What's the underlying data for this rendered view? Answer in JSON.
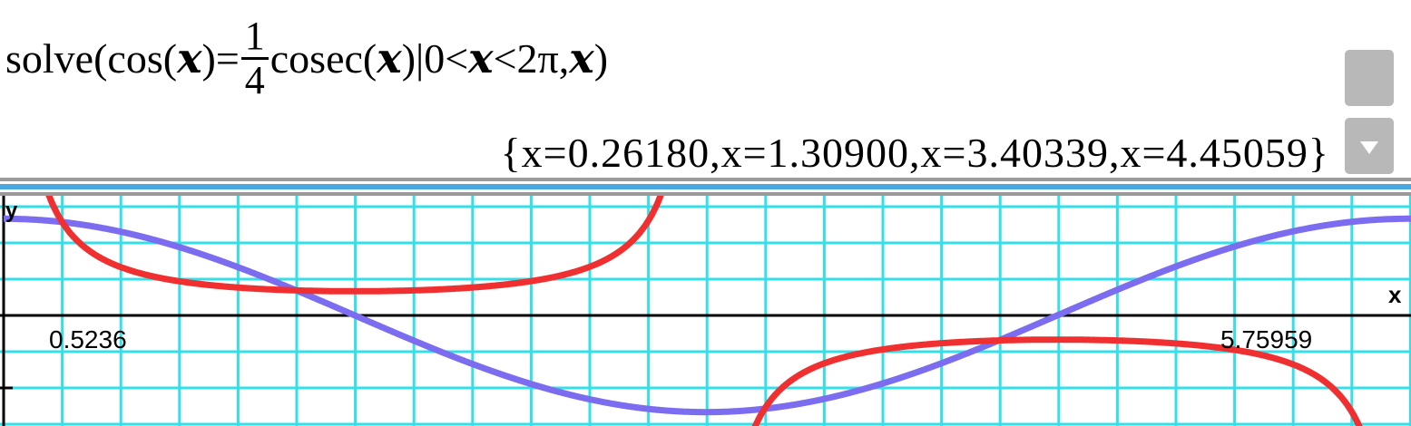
{
  "input": {
    "prefix": "solve(cos(",
    "var": "𝒙",
    "eq": ")=",
    "frac_num": "1",
    "frac_den": "4",
    "mid": "cosec(",
    "cond": ")|0<",
    "cond2": "<2π,",
    "end": ")"
  },
  "output": {
    "text": "{x=0.26180,x=1.30900,x=3.40339,x=4.45059}"
  },
  "graph": {
    "y_axis_label": "y",
    "x_axis_label": "x",
    "tick_label_left": "0.5236",
    "tick_label_right": "5.75959",
    "grid_color": "#33e0ea",
    "curve1_color": "#7b6cf0",
    "curve2_color": "#f03030"
  }
}
